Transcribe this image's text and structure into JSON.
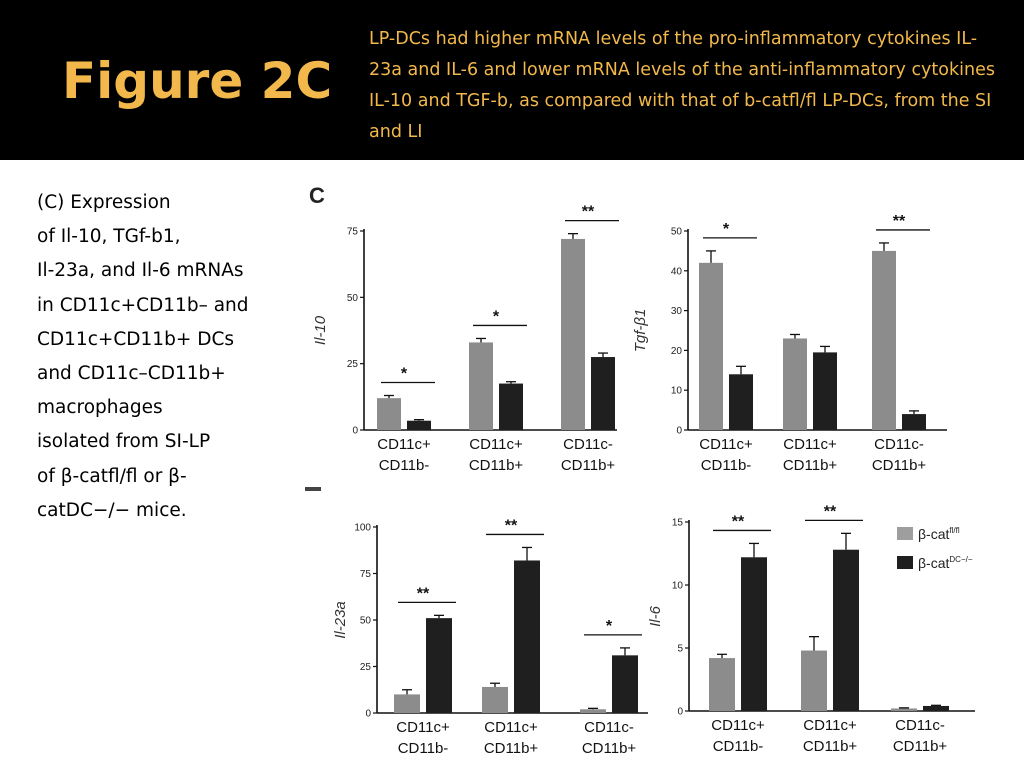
{
  "slide": {
    "title": "Figure 2C",
    "subtitle": "LP-DCs had higher mRNA levels of the pro-inflammatory cytokines IL-23a and IL-6 and lower mRNA levels of the anti-inflammatory cytokines IL-10 and TGF-b, as compared with that of b-catfl/fl LP-DCs, from the SI and LI",
    "caption_lines": [
      "(C) Expression",
      "of Il-10, TGf-b1,",
      "Il-23a, and Il-6 mRNAs",
      "in CD11c+CD11b– and",
      "CD11c+CD11b+ DCs",
      "and CD11c–CD11b+",
      "macrophages",
      "isolated from SI-LP",
      "of β-catfl/fl or β-",
      "catDC−/− mice."
    ],
    "panel_letter": "C",
    "colors": {
      "header_bg": "#000000",
      "title_text": "#f2b84b",
      "flfl_bar": "#8c8c8c",
      "ko_bar": "#1f1f1f"
    }
  },
  "legend": {
    "entries": [
      {
        "label": "β-cat",
        "superscript": "fl/fl",
        "color": "#9e9e9e"
      },
      {
        "label": "β-cat",
        "superscript": "DC−/−",
        "color": "#1f1f1f"
      }
    ]
  },
  "chart_data": [
    {
      "type": "bar",
      "ylabel": "Il-10",
      "ylim": [
        0,
        75
      ],
      "yticks": [
        0,
        25,
        50,
        75
      ],
      "categories": [
        [
          "CD11c+",
          "CD11b-"
        ],
        [
          "CD11c+",
          "CD11b+"
        ],
        [
          "CD11c-",
          "CD11b+"
        ]
      ],
      "series": [
        {
          "values": [
            12,
            33,
            72
          ],
          "errors": [
            1,
            1.5,
            2
          ]
        },
        {
          "values": [
            3.5,
            17.5,
            27.5
          ],
          "errors": [
            0.4,
            0.7,
            1.5
          ]
        }
      ],
      "significance": [
        "*",
        "*",
        "**"
      ]
    },
    {
      "type": "bar",
      "ylabel": "Tgf-β1",
      "ylim": [
        0,
        50
      ],
      "yticks": [
        0,
        10,
        20,
        30,
        40,
        50
      ],
      "categories": [
        [
          "CD11c+",
          "CD11b-"
        ],
        [
          "CD11c+",
          "CD11b+"
        ],
        [
          "CD11c-",
          "CD11b+"
        ]
      ],
      "series": [
        {
          "values": [
            42,
            23,
            45
          ],
          "errors": [
            3,
            1,
            2
          ]
        },
        {
          "values": [
            14,
            19.5,
            4
          ],
          "errors": [
            2,
            1.5,
            0.8
          ]
        }
      ],
      "significance": [
        "*",
        "",
        "**"
      ]
    },
    {
      "type": "bar",
      "ylabel": "Il-23a",
      "ylim": [
        0,
        100
      ],
      "yticks": [
        0,
        25,
        50,
        75,
        100
      ],
      "categories": [
        [
          "CD11c+",
          "CD11b-"
        ],
        [
          "CD11c+",
          "CD11b+"
        ],
        [
          "CD11c-",
          "CD11b+"
        ]
      ],
      "series": [
        {
          "values": [
            10,
            14,
            2
          ],
          "errors": [
            2.5,
            2,
            0.5
          ]
        },
        {
          "values": [
            51,
            82,
            31
          ],
          "errors": [
            1.5,
            7,
            4
          ]
        }
      ],
      "significance": [
        "**",
        "**",
        "*"
      ]
    },
    {
      "type": "bar",
      "ylabel": "Il-6",
      "ylim": [
        0,
        15
      ],
      "yticks": [
        0,
        5,
        10,
        15
      ],
      "categories": [
        [
          "CD11c+",
          "CD11b-"
        ],
        [
          "CD11c+",
          "CD11b+"
        ],
        [
          "CD11c-",
          "CD11b+"
        ]
      ],
      "series": [
        {
          "values": [
            4.2,
            4.8,
            0.2
          ],
          "errors": [
            0.3,
            1.1,
            0.05
          ]
        },
        {
          "values": [
            12.2,
            12.8,
            0.4
          ],
          "errors": [
            1.1,
            1.3,
            0.05
          ]
        }
      ],
      "significance": [
        "**",
        "**",
        ""
      ]
    }
  ]
}
